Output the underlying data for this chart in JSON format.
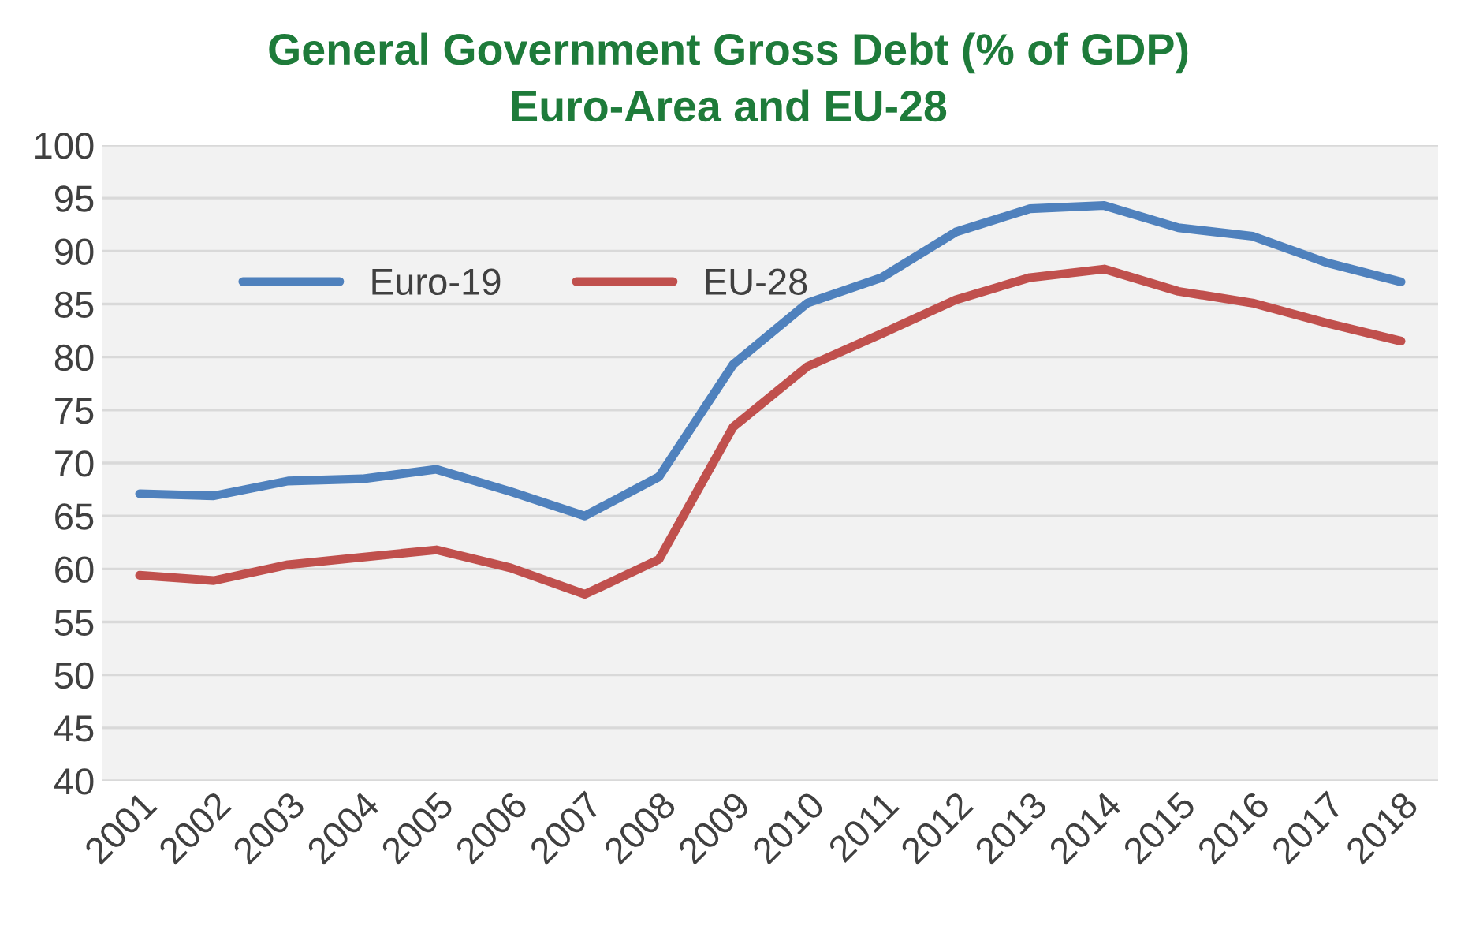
{
  "chart_data": {
    "type": "line",
    "title": "General Government Gross Debt (% of GDP)\nEuro-Area and EU-28",
    "categories": [
      "2001",
      "2002",
      "2003",
      "2004",
      "2005",
      "2006",
      "2007",
      "2008",
      "2009",
      "2010",
      "2011",
      "2012",
      "2013",
      "2014",
      "2015",
      "2016",
      "2017",
      "2018"
    ],
    "series": [
      {
        "name": "Euro-19",
        "color": "#4f81bd",
        "values": [
          67.1,
          66.9,
          68.3,
          68.5,
          69.4,
          67.3,
          65.0,
          68.7,
          79.3,
          85.1,
          87.5,
          91.8,
          94.0,
          94.3,
          92.2,
          91.4,
          88.9,
          87.1
        ]
      },
      {
        "name": "EU-28",
        "color": "#c0504d",
        "values": [
          59.4,
          58.9,
          60.4,
          61.1,
          61.8,
          60.1,
          57.6,
          60.9,
          73.4,
          79.1,
          82.2,
          85.4,
          87.5,
          88.3,
          86.2,
          85.1,
          83.2,
          81.5
        ]
      }
    ],
    "ylim": [
      40,
      100
    ],
    "yticks": [
      40,
      45,
      50,
      55,
      60,
      65,
      70,
      75,
      80,
      85,
      90,
      95,
      100
    ],
    "grid": "y",
    "legend": "top left",
    "marker": "none",
    "line_style": "solid"
  }
}
